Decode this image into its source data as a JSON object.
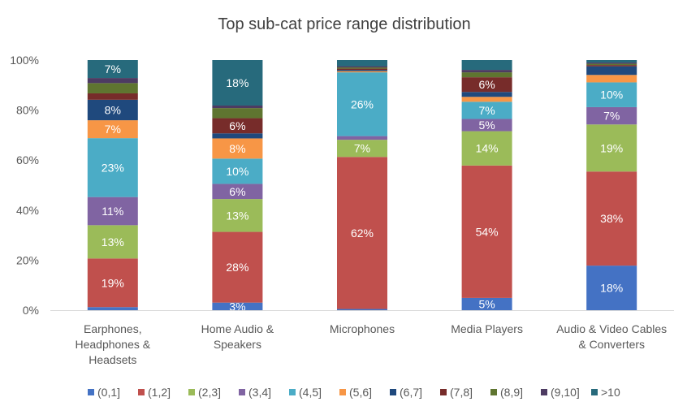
{
  "chart_data": {
    "type": "bar",
    "stacked": true,
    "percent_stacked": true,
    "title": "Top sub-cat price range distribution",
    "xlabel": "",
    "ylabel": "",
    "ylim": [
      0,
      100
    ],
    "yticks": [
      "0%",
      "20%",
      "40%",
      "60%",
      "80%",
      "100%"
    ],
    "grid": false,
    "legend_position": "bottom",
    "categories": [
      "Earphones, Headphones & Headsets",
      "Home Audio & Speakers",
      "Microphones",
      "Media Players",
      "Audio & Video Cables & Converters"
    ],
    "category_lines": [
      [
        "Earphones,",
        "Headphones &",
        "Headsets"
      ],
      [
        "Home Audio &",
        "Speakers"
      ],
      [
        "Microphones"
      ],
      [
        "Media Players"
      ],
      [
        "Audio & Video Cables",
        "& Converters"
      ]
    ],
    "series": [
      {
        "name": "(0,1]",
        "color": "#4472C4",
        "values": [
          1.2,
          3,
          0.5,
          5,
          18
        ],
        "labels": [
          "",
          "3%",
          "",
          "5%",
          "18%"
        ]
      },
      {
        "name": "(1,2]",
        "color": "#C0504D",
        "values": [
          19,
          28,
          62,
          54,
          38
        ],
        "labels": [
          "19%",
          "28%",
          "62%",
          "54%",
          "38%"
        ]
      },
      {
        "name": "(2,3]",
        "color": "#9BBB59",
        "values": [
          13,
          13,
          7,
          14,
          19
        ],
        "labels": [
          "13%",
          "13%",
          "7%",
          "14%",
          "19%"
        ]
      },
      {
        "name": "(3,4]",
        "color": "#8064A2",
        "values": [
          11,
          6,
          1.5,
          5,
          7
        ],
        "labels": [
          "11%",
          "6%",
          "",
          "5%",
          "7%"
        ]
      },
      {
        "name": "(4,5]",
        "color": "#4BACC6",
        "values": [
          23,
          10,
          26,
          7,
          10
        ],
        "labels": [
          "23%",
          "10%",
          "26%",
          "7%",
          "10%"
        ]
      },
      {
        "name": "(5,6]",
        "color": "#F79646",
        "values": [
          7,
          8,
          0.5,
          2,
          3
        ],
        "labels": [
          "7%",
          "8%",
          "",
          "",
          ""
        ]
      },
      {
        "name": "(6,7]",
        "color": "#1F497D",
        "values": [
          8,
          2,
          0.5,
          2,
          3.5
        ],
        "labels": [
          "8%",
          "",
          "",
          "",
          ""
        ]
      },
      {
        "name": "(7,8]",
        "color": "#772C2A",
        "values": [
          2.5,
          6,
          0.5,
          6,
          0.5
        ],
        "labels": [
          "",
          "6%",
          "",
          "6%",
          ""
        ]
      },
      {
        "name": "(8,9]",
        "color": "#5F7530",
        "values": [
          4,
          4,
          0.5,
          2,
          0.5
        ],
        "labels": [
          "",
          "",
          "",
          "",
          ""
        ]
      },
      {
        "name": "(9,10]",
        "color": "#4D3B62",
        "values": [
          2,
          1,
          0.5,
          1,
          0.5
        ],
        "labels": [
          "",
          "",
          "",
          "",
          ""
        ]
      },
      {
        "name": ">10",
        "color": "#276A7C",
        "values": [
          7,
          18,
          2.5,
          4,
          1
        ],
        "labels": [
          "7%",
          "18%",
          "",
          "",
          ""
        ]
      }
    ]
  }
}
